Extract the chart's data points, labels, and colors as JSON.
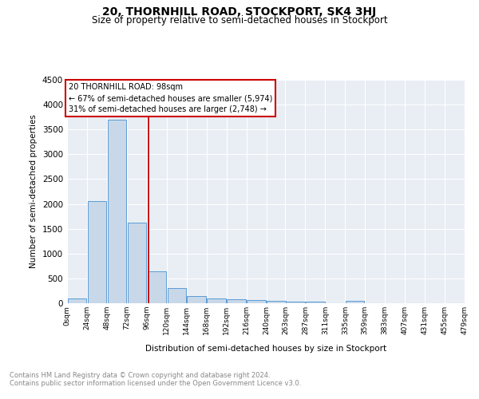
{
  "title": "20, THORNHILL ROAD, STOCKPORT, SK4 3HJ",
  "subtitle": "Size of property relative to semi-detached houses in Stockport",
  "xlabel": "Distribution of semi-detached houses by size in Stockport",
  "ylabel": "Number of semi-detached properties",
  "footnote1": "Contains HM Land Registry data © Crown copyright and database right 2024.",
  "footnote2": "Contains public sector information licensed under the Open Government Licence v3.0.",
  "annotation_line1": "20 THORNHILL ROAD: 98sqm",
  "annotation_line2": "← 67% of semi-detached houses are smaller (5,974)",
  "annotation_line3": "31% of semi-detached houses are larger (2,748) →",
  "property_size": 98,
  "bin_edges": [
    0,
    24,
    48,
    72,
    96,
    120,
    144,
    168,
    192,
    216,
    240,
    263,
    287,
    311,
    335,
    359,
    383,
    407,
    431,
    455,
    479
  ],
  "bar_values": [
    100,
    2050,
    3700,
    1620,
    640,
    300,
    145,
    100,
    80,
    70,
    55,
    35,
    25,
    0,
    50,
    0,
    0,
    0,
    0,
    0
  ],
  "bar_color": "#c8d8e8",
  "bar_edge_color": "#5b9bd5",
  "vline_color": "#cc0000",
  "ylim": [
    0,
    4500
  ],
  "yticks": [
    0,
    500,
    1000,
    1500,
    2000,
    2500,
    3000,
    3500,
    4000,
    4500
  ],
  "bg_color": "#e8eef4",
  "title_fontsize": 10,
  "subtitle_fontsize": 8.5,
  "footnote_color": "#888888"
}
